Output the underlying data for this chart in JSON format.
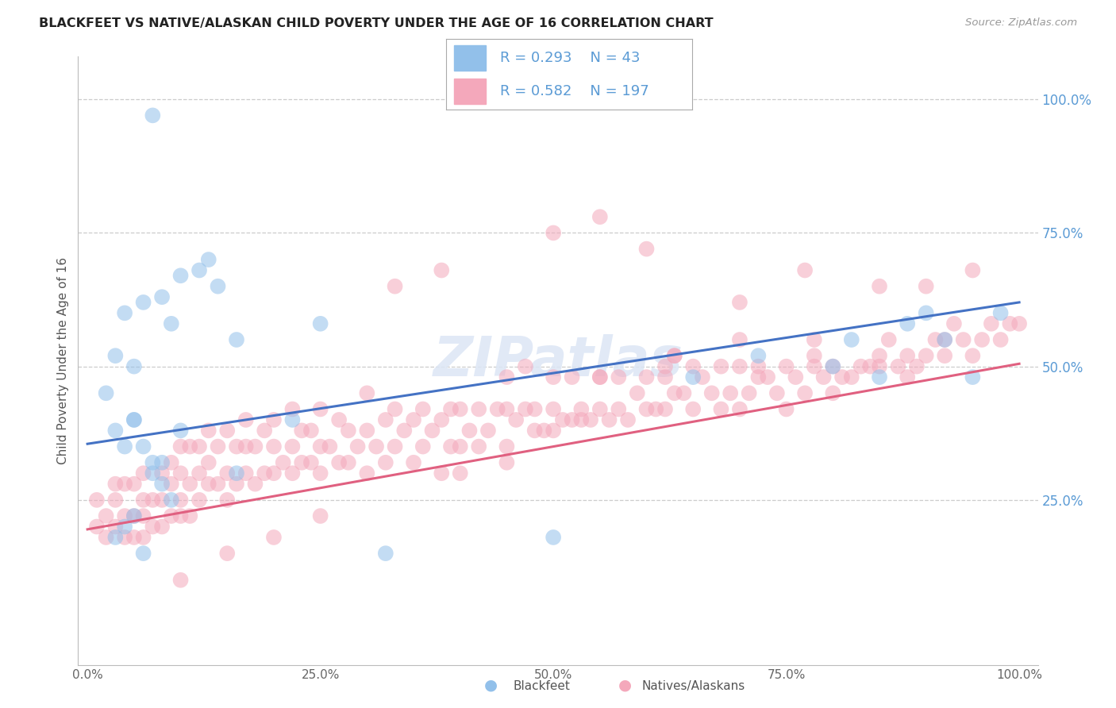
{
  "title": "BLACKFEET VS NATIVE/ALASKAN CHILD POVERTY UNDER THE AGE OF 16 CORRELATION CHART",
  "source": "Source: ZipAtlas.com",
  "ylabel": "Child Poverty Under the Age of 16",
  "xlim": [
    -0.01,
    1.02
  ],
  "ylim": [
    -0.06,
    1.08
  ],
  "xtick_vals": [
    0,
    0.25,
    0.5,
    0.75,
    1.0
  ],
  "ytick_vals": [
    0.25,
    0.5,
    0.75,
    1.0
  ],
  "blue_color": "#92C0EA",
  "blue_line_color": "#4472C4",
  "pink_color": "#F4A8BB",
  "pink_line_color": "#E06080",
  "label_color": "#5B9BD5",
  "blue_R": 0.293,
  "blue_N": 43,
  "pink_R": 0.582,
  "pink_N": 197,
  "blue_line_x0": 0.0,
  "blue_line_y0": 0.355,
  "blue_line_x1": 1.0,
  "blue_line_y1": 0.62,
  "pink_line_x0": 0.0,
  "pink_line_y0": 0.195,
  "pink_line_x1": 1.0,
  "pink_line_y1": 0.505,
  "blue_scatter_x": [
    0.07,
    0.1,
    0.12,
    0.13,
    0.06,
    0.08,
    0.14,
    0.04,
    0.09,
    0.16,
    0.03,
    0.05,
    0.02,
    0.05,
    0.1,
    0.06,
    0.25,
    0.07,
    0.22,
    0.16,
    0.08,
    0.09,
    0.05,
    0.04,
    0.03,
    0.06,
    0.07,
    0.08,
    0.03,
    0.04,
    0.05,
    0.32,
    0.5,
    0.65,
    0.72,
    0.8,
    0.82,
    0.85,
    0.88,
    0.9,
    0.92,
    0.95,
    0.98
  ],
  "blue_scatter_y": [
    0.97,
    0.67,
    0.68,
    0.7,
    0.62,
    0.63,
    0.65,
    0.6,
    0.58,
    0.55,
    0.52,
    0.5,
    0.45,
    0.4,
    0.38,
    0.35,
    0.58,
    0.32,
    0.4,
    0.3,
    0.28,
    0.25,
    0.22,
    0.2,
    0.18,
    0.15,
    0.3,
    0.32,
    0.38,
    0.35,
    0.4,
    0.15,
    0.18,
    0.48,
    0.52,
    0.5,
    0.55,
    0.48,
    0.58,
    0.6,
    0.55,
    0.48,
    0.6
  ],
  "pink_scatter_x": [
    0.01,
    0.01,
    0.02,
    0.02,
    0.03,
    0.03,
    0.03,
    0.04,
    0.04,
    0.04,
    0.05,
    0.05,
    0.05,
    0.06,
    0.06,
    0.06,
    0.06,
    0.07,
    0.07,
    0.08,
    0.08,
    0.08,
    0.09,
    0.09,
    0.09,
    0.1,
    0.1,
    0.1,
    0.1,
    0.11,
    0.11,
    0.11,
    0.12,
    0.12,
    0.12,
    0.13,
    0.13,
    0.13,
    0.14,
    0.14,
    0.15,
    0.15,
    0.15,
    0.16,
    0.16,
    0.17,
    0.17,
    0.17,
    0.18,
    0.18,
    0.19,
    0.19,
    0.2,
    0.2,
    0.2,
    0.21,
    0.22,
    0.22,
    0.22,
    0.23,
    0.23,
    0.24,
    0.24,
    0.25,
    0.25,
    0.25,
    0.26,
    0.27,
    0.27,
    0.28,
    0.28,
    0.29,
    0.3,
    0.3,
    0.3,
    0.31,
    0.32,
    0.32,
    0.33,
    0.33,
    0.34,
    0.35,
    0.35,
    0.36,
    0.36,
    0.37,
    0.38,
    0.38,
    0.39,
    0.39,
    0.4,
    0.4,
    0.41,
    0.42,
    0.42,
    0.43,
    0.44,
    0.45,
    0.45,
    0.45,
    0.46,
    0.47,
    0.48,
    0.48,
    0.49,
    0.5,
    0.5,
    0.5,
    0.51,
    0.52,
    0.52,
    0.53,
    0.54,
    0.55,
    0.55,
    0.56,
    0.57,
    0.57,
    0.58,
    0.59,
    0.6,
    0.6,
    0.61,
    0.62,
    0.62,
    0.63,
    0.63,
    0.64,
    0.65,
    0.65,
    0.66,
    0.67,
    0.68,
    0.68,
    0.69,
    0.7,
    0.7,
    0.71,
    0.72,
    0.72,
    0.73,
    0.74,
    0.75,
    0.75,
    0.76,
    0.77,
    0.78,
    0.78,
    0.79,
    0.8,
    0.8,
    0.81,
    0.82,
    0.83,
    0.84,
    0.85,
    0.85,
    0.86,
    0.87,
    0.88,
    0.88,
    0.89,
    0.9,
    0.91,
    0.92,
    0.92,
    0.93,
    0.94,
    0.95,
    0.96,
    0.97,
    0.98,
    0.99,
    1.0,
    0.5,
    0.55,
    0.33,
    0.6,
    0.38,
    0.1,
    0.15,
    0.2,
    0.25,
    0.4,
    0.45,
    0.53,
    0.62,
    0.7,
    0.78,
    0.85,
    0.9,
    0.95,
    0.47,
    0.55,
    0.63,
    0.7,
    0.77
  ],
  "pink_scatter_y": [
    0.2,
    0.25,
    0.18,
    0.22,
    0.2,
    0.25,
    0.28,
    0.18,
    0.22,
    0.28,
    0.18,
    0.22,
    0.28,
    0.18,
    0.22,
    0.25,
    0.3,
    0.2,
    0.25,
    0.2,
    0.25,
    0.3,
    0.22,
    0.28,
    0.32,
    0.22,
    0.25,
    0.3,
    0.35,
    0.22,
    0.28,
    0.35,
    0.25,
    0.3,
    0.35,
    0.28,
    0.32,
    0.38,
    0.28,
    0.35,
    0.25,
    0.3,
    0.38,
    0.28,
    0.35,
    0.3,
    0.35,
    0.4,
    0.28,
    0.35,
    0.3,
    0.38,
    0.3,
    0.35,
    0.4,
    0.32,
    0.3,
    0.35,
    0.42,
    0.32,
    0.38,
    0.32,
    0.38,
    0.3,
    0.35,
    0.42,
    0.35,
    0.32,
    0.4,
    0.32,
    0.38,
    0.35,
    0.3,
    0.38,
    0.45,
    0.35,
    0.32,
    0.4,
    0.35,
    0.42,
    0.38,
    0.32,
    0.4,
    0.35,
    0.42,
    0.38,
    0.3,
    0.4,
    0.35,
    0.42,
    0.35,
    0.42,
    0.38,
    0.35,
    0.42,
    0.38,
    0.42,
    0.35,
    0.42,
    0.48,
    0.4,
    0.42,
    0.38,
    0.42,
    0.38,
    0.38,
    0.42,
    0.48,
    0.4,
    0.4,
    0.48,
    0.42,
    0.4,
    0.42,
    0.48,
    0.4,
    0.48,
    0.42,
    0.4,
    0.45,
    0.42,
    0.48,
    0.42,
    0.42,
    0.5,
    0.45,
    0.52,
    0.45,
    0.42,
    0.5,
    0.48,
    0.45,
    0.42,
    0.5,
    0.45,
    0.42,
    0.5,
    0.45,
    0.48,
    0.5,
    0.48,
    0.45,
    0.42,
    0.5,
    0.48,
    0.45,
    0.5,
    0.52,
    0.48,
    0.45,
    0.5,
    0.48,
    0.48,
    0.5,
    0.5,
    0.52,
    0.5,
    0.55,
    0.5,
    0.48,
    0.52,
    0.5,
    0.52,
    0.55,
    0.52,
    0.55,
    0.58,
    0.55,
    0.52,
    0.55,
    0.58,
    0.55,
    0.58,
    0.58,
    0.75,
    0.78,
    0.65,
    0.72,
    0.68,
    0.1,
    0.15,
    0.18,
    0.22,
    0.3,
    0.32,
    0.4,
    0.48,
    0.55,
    0.55,
    0.65,
    0.65,
    0.68,
    0.5,
    0.48,
    0.52,
    0.62,
    0.68
  ]
}
